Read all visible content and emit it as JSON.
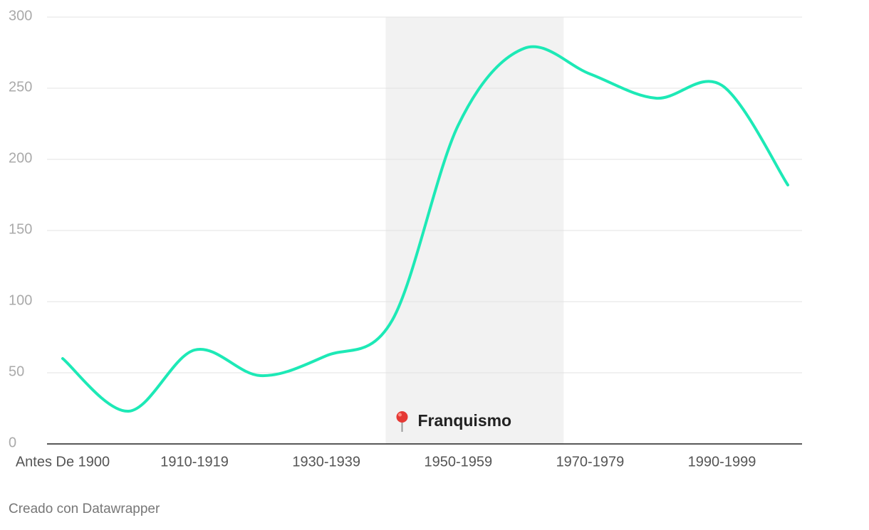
{
  "chart_data": {
    "type": "line",
    "categories": [
      "Antes De 1900",
      null,
      "1910-1919",
      null,
      "1930-1939",
      null,
      "1950-1959",
      null,
      "1970-1979",
      null,
      "1990-1999",
      null
    ],
    "series": [
      {
        "color": "#1de9b6",
        "values": [
          60,
          23,
          66,
          48,
          62,
          87,
          224,
          278,
          260,
          243,
          252,
          182
        ]
      }
    ],
    "ylim": [
      0,
      300
    ],
    "yticks": [
      0,
      50,
      100,
      150,
      200,
      250,
      300
    ],
    "grid": true,
    "highlight": {
      "label": "Franquismo",
      "range": [
        4.9,
        7.6
      ]
    },
    "footer": "Creado con Datawrapper"
  }
}
